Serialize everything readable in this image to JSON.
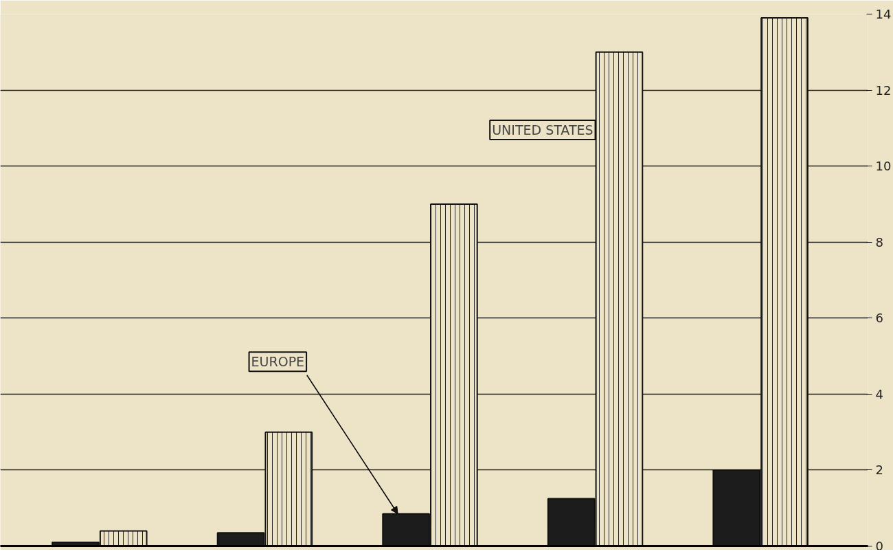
{
  "chart_data": {
    "type": "bar",
    "categories": [
      null,
      null,
      null,
      null,
      null
    ],
    "series": [
      {
        "name": "EUROPE",
        "color": "#1c1c1c",
        "values": [
          0.1,
          0.35,
          0.85,
          1.25,
          2.0
        ]
      },
      {
        "name": "UNITED STATES",
        "color": "#ede4c8",
        "values": [
          0.4,
          3.0,
          9.0,
          13.0,
          13.9
        ]
      }
    ],
    "ylim": [
      0,
      14
    ],
    "yticks": [
      0,
      2,
      4,
      6,
      8,
      10,
      12,
      14
    ],
    "grid": "y"
  }
}
